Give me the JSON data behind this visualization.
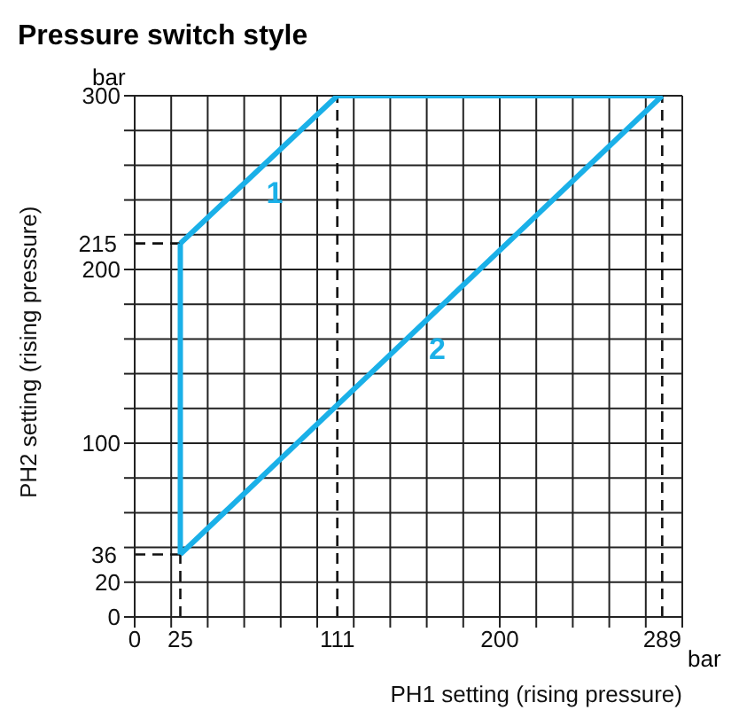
{
  "chart_data": {
    "type": "line",
    "title": "Pressure switch style",
    "xlabel": "PH1 setting (rising pressure)",
    "ylabel": "PH2 setting (rising pressure)",
    "annotations": [
      "bar",
      "bar"
    ],
    "series": [
      {
        "color": "#1ab0e8",
        "x": [
          25,
          25
        ],
        "values": [
          36,
          215
        ]
      },
      {
        "name": "1",
        "color": "#1ab0e8",
        "x": [
          25,
          111,
          289
        ],
        "values": [
          215,
          300,
          300
        ]
      },
      {
        "name": "2",
        "color": "#1ab0e8",
        "x": [
          25,
          289
        ],
        "values": [
          36,
          300
        ]
      }
    ],
    "xlim": [
      0,
      300
    ],
    "ylim": [
      0,
      300
    ],
    "xticks": [
      0,
      {
        "value": 20,
        "label": null
      },
      {
        "value": 40,
        "label": null
      },
      {
        "value": 60,
        "label": null
      },
      {
        "value": 80,
        "label": null
      },
      {
        "value": 100,
        "label": null
      },
      {
        "value": 120,
        "label": null
      },
      {
        "value": 140,
        "label": null
      },
      {
        "value": 160,
        "label": null
      },
      {
        "value": 180,
        "label": null
      },
      200,
      {
        "value": 220,
        "label": null
      },
      {
        "value": 240,
        "label": null
      },
      {
        "value": 260,
        "label": null
      },
      {
        "value": 280,
        "label": null
      },
      {
        "value": 300,
        "label": null
      }
    ],
    "yticks": [
      0,
      20,
      {
        "value": 40,
        "label": null
      },
      {
        "value": 60,
        "label": null
      },
      {
        "value": 80,
        "label": null
      },
      100,
      {
        "value": 120,
        "label": null
      },
      {
        "value": 140,
        "label": null
      },
      {
        "value": 160,
        "label": null
      },
      {
        "value": 180,
        "label": null
      },
      200,
      {
        "value": 220,
        "label": null
      },
      {
        "value": 240,
        "label": null
      },
      {
        "value": 260,
        "label": null
      },
      {
        "value": 280,
        "label": null
      },
      300
    ],
    "ref_lines": [
      {
        "axis": "y",
        "value": 36,
        "label": "36",
        "line_style": "dashed"
      },
      {
        "axis": "y",
        "value": 215,
        "label": "215",
        "line_style": "dashed"
      },
      {
        "axis": "x",
        "value": 25,
        "label": "25",
        "line_style": "dashed"
      },
      {
        "axis": "x",
        "value": 111,
        "label": "111",
        "line_style": "dashed"
      },
      {
        "axis": "x",
        "value": 289,
        "label": "289",
        "line_style": "dashed"
      }
    ],
    "grid": true,
    "marker": "none",
    "line_style": "solid"
  }
}
